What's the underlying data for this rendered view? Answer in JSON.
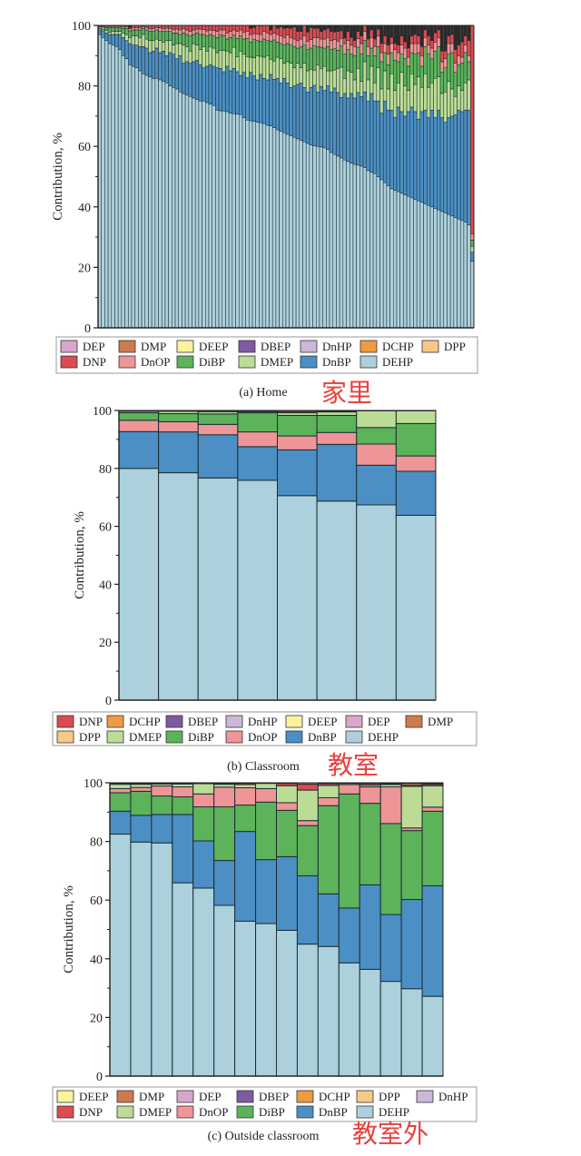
{
  "colors": {
    "DEP": "#d8a6cc",
    "DMP": "#cf7a4e",
    "DEEP": "#fbf29a",
    "DBEP": "#7f5aa3",
    "DnHP": "#cdb7d8",
    "DCHP": "#f09a42",
    "DPP": "#f7c987",
    "DNP": "#dc4b4f",
    "DnOP": "#ee9597",
    "DiBP": "#5cb35a",
    "DMEP": "#bcdc96",
    "DnBP": "#4b8fc4",
    "DEHP": "#acd0dc",
    "annotation": "#e8413e"
  },
  "chart_data": [
    {
      "type": "bar",
      "stacked": true,
      "title": "(a) Home",
      "annotation": "家里",
      "xlabel": "",
      "ylabel": "Contribution, %",
      "ylim": [
        0,
        100
      ],
      "yticks": [
        "0",
        "20",
        "40",
        "60",
        "80",
        "100"
      ],
      "legend": {
        "placement": "bottom",
        "entries": [
          "DEP",
          "DMP",
          "DEEP",
          "DBEP",
          "DnHP",
          "DCHP",
          "DPP",
          "DNP",
          "DnOP",
          "DiBP",
          "DMEP",
          "DnBP",
          "DEHP"
        ]
      },
      "stack_order": [
        "DEHP",
        "DnBP",
        "DMEP",
        "DiBP",
        "DnOP",
        "DNP"
      ],
      "n_bars": 112,
      "series": [
        {
          "name": "DEHP",
          "values": [
            97,
            96,
            95,
            94,
            93.5,
            93,
            92,
            90,
            89,
            87,
            86.5,
            86,
            85,
            84,
            83.5,
            83,
            82.5,
            82.5,
            82,
            81.5,
            81,
            80,
            79.5,
            79,
            78,
            77.5,
            77,
            76.5,
            76,
            75.5,
            75,
            75,
            74.5,
            74,
            73.5,
            72,
            71.8,
            71.7,
            71.5,
            71,
            70.8,
            70.7,
            70.5,
            69.5,
            68.7,
            68.5,
            68.3,
            68,
            67.8,
            67.5,
            67,
            66.8,
            66.2,
            65.5,
            65,
            64.5,
            64,
            63.5,
            63,
            62.5,
            62,
            61.5,
            61,
            60.5,
            60.2,
            60,
            59.8,
            59.5,
            59,
            58,
            57.3,
            56.8,
            56.2,
            55.5,
            55,
            54.5,
            54,
            53.8,
            53.5,
            53,
            52,
            51.5,
            51,
            50,
            49,
            48,
            47,
            46,
            45.5,
            45,
            44.5,
            44,
            43.5,
            43,
            42.5,
            42,
            41.5,
            41,
            40.5,
            40,
            39.5,
            39,
            38.5,
            38,
            37.5,
            37,
            36.5,
            36,
            35.5,
            35,
            34,
            22
          ]
        },
        {
          "name": "DnBP",
          "values": [
            1.5,
            2,
            2.5,
            3,
            3.5,
            4,
            5,
            6,
            6,
            7,
            7,
            7.5,
            8,
            9,
            9,
            8,
            9,
            10,
            9,
            10,
            9,
            11,
            11,
            10,
            12,
            10,
            11,
            11,
            12,
            13,
            12,
            11,
            12,
            13,
            13,
            14,
            14,
            13,
            15,
            14,
            15,
            14,
            13,
            15,
            14,
            16,
            15,
            14,
            16,
            15,
            15,
            17,
            16,
            17,
            16,
            18,
            17,
            16,
            17,
            18,
            19,
            18,
            17,
            19,
            20,
            18,
            20,
            19,
            21,
            20,
            22,
            21,
            20,
            22,
            21,
            23,
            22,
            24,
            23,
            25,
            23,
            26,
            24,
            25,
            22,
            27,
            25,
            26,
            24,
            28,
            27,
            26,
            28,
            30,
            29,
            27,
            30,
            31,
            29,
            32,
            30,
            33,
            31,
            30,
            32,
            33,
            34,
            36,
            36,
            37,
            38,
            3
          ]
        },
        {
          "name": "DMEP",
          "values": [
            0.5,
            0.5,
            0.8,
            0.8,
            1,
            1,
            1,
            1.5,
            2,
            2,
            3,
            3,
            3,
            4,
            3,
            4,
            3.5,
            3,
            4,
            3,
            5,
            4,
            3,
            5,
            4,
            6,
            5,
            4,
            6,
            5,
            5,
            7,
            5,
            6,
            6,
            5,
            6,
            7,
            5,
            6,
            7,
            5,
            8,
            6,
            7,
            5,
            6,
            8,
            6,
            7,
            8,
            5,
            6,
            7,
            8,
            5,
            7,
            8,
            6,
            7,
            5,
            8,
            7,
            6,
            5,
            9,
            6,
            8,
            5,
            7,
            6,
            8,
            10,
            5,
            9,
            7,
            6,
            8,
            5,
            10,
            7,
            9,
            6,
            11,
            8,
            10,
            7,
            12,
            9,
            8,
            13,
            10,
            7,
            11,
            9,
            14,
            8,
            12,
            10,
            9,
            13,
            11,
            8,
            10,
            12,
            9,
            6,
            8,
            7,
            9,
            10,
            2
          ]
        },
        {
          "name": "DiBP",
          "values": [
            0.5,
            1,
            1,
            1.5,
            1.3,
            1.2,
            1.2,
            1.5,
            2,
            2.2,
            2,
            2,
            2.5,
            2,
            3,
            3,
            3,
            3,
            3,
            3.5,
            3,
            3,
            4,
            3.5,
            3,
            4,
            4,
            5,
            3,
            4,
            5,
            4,
            5,
            4,
            4,
            5,
            5,
            5,
            4,
            5,
            4,
            6,
            5,
            5,
            6,
            5,
            6,
            5,
            5,
            6,
            5,
            6,
            7,
            5,
            5,
            6,
            6,
            6,
            7,
            5,
            7,
            6,
            7,
            7,
            8,
            6,
            7,
            6,
            8,
            7,
            7,
            6,
            7,
            8,
            7,
            6,
            8,
            7,
            9,
            7,
            8,
            6,
            9,
            7,
            9,
            6,
            8,
            7,
            10,
            7,
            6,
            9,
            8,
            7,
            10,
            8,
            7,
            9,
            11,
            8,
            9,
            10,
            7,
            8,
            9,
            12,
            8,
            7,
            9,
            10,
            6,
            2
          ]
        },
        {
          "name": "DnOP",
          "values": [
            0.3,
            0.3,
            0.4,
            0.4,
            0.4,
            0.5,
            0.5,
            0.6,
            0.6,
            0.7,
            0.8,
            0.8,
            0.8,
            0.6,
            0.8,
            1,
            1,
            0.8,
            1.2,
            1,
            1.1,
            1,
            1.2,
            1.3,
            1.5,
            1.4,
            1.5,
            1.5,
            1.5,
            1.3,
            1.8,
            1.6,
            1.7,
            1.5,
            1.8,
            2,
            1.7,
            1.8,
            2,
            2,
            1.7,
            2.3,
            2,
            2.3,
            2.3,
            2.5,
            2,
            2.2,
            2.2,
            2.5,
            2.5,
            2.2,
            2.2,
            2.5,
            2.5,
            2.5,
            2.8,
            2.5,
            2.5,
            2.5,
            2.5,
            3,
            2.8,
            2.8,
            2.8,
            3,
            2.7,
            3,
            3,
            3,
            3,
            3,
            2.5,
            3.5,
            3,
            3,
            3,
            2.8,
            3.5,
            3,
            3,
            3.5,
            3,
            3.5,
            3,
            3,
            3.5,
            3,
            3.5,
            3,
            3,
            3.5,
            3,
            3,
            3.5,
            3,
            3.5,
            3,
            3,
            3.5,
            3,
            3,
            3.5,
            3,
            3.5,
            3,
            3,
            3,
            2,
            2.5,
            2,
            2
          ]
        },
        {
          "name": "DNP",
          "values": [
            0.2,
            0.2,
            0.3,
            0.3,
            0.3,
            0.3,
            0.3,
            0.4,
            0.4,
            0.4,
            0.7,
            0.7,
            0.7,
            0.4,
            0.7,
            1,
            1,
            0.7,
            0.8,
            1,
            0.9,
            1,
            1.3,
            1.2,
            1.5,
            1.1,
            1.5,
            2,
            1.5,
            1.2,
            1.2,
            1.4,
            1.8,
            1.5,
            1.7,
            2,
            1.5,
            1.5,
            2.5,
            2,
            1.5,
            2,
            2.2,
            2.2,
            2,
            2,
            2,
            2.8,
            2.8,
            2,
            2.5,
            1.5,
            2.6,
            2,
            3,
            3,
            2.4,
            3,
            4,
            3,
            2.5,
            3.5,
            3,
            4,
            3,
            3,
            2.5,
            3,
            3,
            3,
            2.5,
            3.2,
            2.5,
            1.8,
            3,
            2.5,
            2,
            2.4,
            2.5,
            2.5,
            2.5,
            2.5,
            2.5,
            2.2,
            3,
            2.5,
            3,
            2,
            2,
            2.5,
            3,
            2,
            3,
            2.5,
            3,
            2.5,
            3,
            2.5,
            3,
            2.5,
            3,
            2.5,
            3.5,
            2.5,
            2.5,
            3,
            4.5,
            3.5,
            5,
            3,
            5,
            69
          ]
        }
      ]
    },
    {
      "type": "bar",
      "stacked": true,
      "title": "(b) Classroom",
      "annotation": "教室",
      "xlabel": "",
      "ylabel": "Contribution, %",
      "ylim": [
        0,
        100
      ],
      "yticks": [
        "0",
        "20",
        "40",
        "60",
        "80",
        "100"
      ],
      "legend": {
        "placement": "bottom",
        "entries": [
          "DNP",
          "DCHP",
          "DBEP",
          "DnHP",
          "DEEP",
          "DEP",
          "DMP",
          "DPP",
          "DMEP",
          "DiBP",
          "DnOP",
          "DnBP",
          "DEHP"
        ]
      },
      "stack_order": [
        "DEHP",
        "DnBP",
        "DnOP",
        "DiBP",
        "DMEP",
        "DPP",
        "DNP"
      ],
      "n_bars": 8,
      "series": [
        {
          "name": "DEHP",
          "values": [
            80.0,
            78.5,
            76.7,
            75.9,
            70.6,
            68.7,
            67.4,
            63.8
          ]
        },
        {
          "name": "DnBP",
          "values": [
            12.7,
            14.1,
            14.9,
            11.6,
            15.8,
            19.6,
            13.7,
            15.2
          ]
        },
        {
          "name": "DnOP",
          "values": [
            3.9,
            3.5,
            3.6,
            5.1,
            4.8,
            4.1,
            7.3,
            5.3
          ]
        },
        {
          "name": "DiBP",
          "values": [
            2.6,
            2.8,
            3.6,
            6.6,
            7.1,
            5.9,
            5.7,
            11.2
          ]
        },
        {
          "name": "DMEP",
          "values": [
            0.5,
            0.8,
            0.8,
            0.4,
            0.9,
            1.2,
            5.8,
            4.4
          ]
        },
        {
          "name": "DPP",
          "values": [
            0.1,
            0.1,
            0.2,
            0.1,
            0.4,
            0.2,
            0.05,
            0.05
          ]
        },
        {
          "name": "DNP",
          "values": [
            0.2,
            0.2,
            0.2,
            0.3,
            0.4,
            0.3,
            0.05,
            0.05
          ]
        }
      ]
    },
    {
      "type": "bar",
      "stacked": true,
      "title": "(c) Outside classroom",
      "annotation": "教室外",
      "xlabel": "",
      "ylabel": "Contribution, %",
      "ylim": [
        0,
        100
      ],
      "yticks": [
        "0",
        "20",
        "40",
        "60",
        "80",
        "100"
      ],
      "legend": {
        "placement": "bottom",
        "entries": [
          "DEEP",
          "DMP",
          "DEP",
          "DBEP",
          "DCHP",
          "DPP",
          "DnHP",
          "DNP",
          "DMEP",
          "DnOP",
          "DiBP",
          "DnBP",
          "DEHP"
        ]
      },
      "stack_order": [
        "DEHP",
        "DnBP",
        "DiBP",
        "DnOP",
        "DMEP",
        "DNP",
        "DMP",
        "DBEP"
      ],
      "n_bars": 16,
      "series": [
        {
          "name": "DEHP",
          "values": [
            82.5,
            79.8,
            79.5,
            65.9,
            64.1,
            58.2,
            52.8,
            52.0,
            49.7,
            45.0,
            44.2,
            38.6,
            36.4,
            32.3,
            29.8,
            27.2
          ]
        },
        {
          "name": "DnBP",
          "values": [
            7.8,
            9.1,
            9.7,
            23.3,
            16.1,
            15.3,
            30.6,
            21.8,
            25.1,
            23.3,
            17.9,
            18.7,
            28.8,
            22.8,
            30.4,
            37.7
          ]
        },
        {
          "name": "DiBP",
          "values": [
            6.3,
            8.2,
            6.3,
            6.0,
            11.6,
            18.3,
            9.0,
            19.6,
            15.8,
            17.1,
            30.1,
            38.9,
            27.8,
            31.0,
            23.5,
            25.4
          ]
        },
        {
          "name": "DnOP",
          "values": [
            1.4,
            1.3,
            3.4,
            3.4,
            4.4,
            6.7,
            5.9,
            4.6,
            2.6,
            1.7,
            2.7,
            3.2,
            5.6,
            12.5,
            0.9,
            1.4
          ]
        },
        {
          "name": "DMEP",
          "values": [
            1.5,
            1.1,
            0.7,
            1.0,
            3.5,
            1.0,
            1.1,
            1.8,
            5.8,
            10.4,
            4.2,
            0.4,
            0.6,
            0.8,
            14.2,
            7.3
          ]
        },
        {
          "name": "DNP",
          "values": [
            0.3,
            0.3,
            0.3,
            0.3,
            0.2,
            0.3,
            0.4,
            0.1,
            0.8,
            2.0,
            0.6,
            0.2,
            0.5,
            0.3,
            0.3,
            0.5
          ]
        },
        {
          "name": "DMP",
          "values": [
            0.2,
            0.2,
            0.1,
            0.1,
            0.1,
            0.2,
            0.2,
            0.1,
            0.2,
            0.5,
            0.3,
            0.0,
            0.3,
            0.3,
            0.7,
            0.3
          ]
        },
        {
          "name": "DBEP",
          "values": [
            0.0,
            0.0,
            0.0,
            0.0,
            0.0,
            0.0,
            0.0,
            0.0,
            0.0,
            0.0,
            0.0,
            0.0,
            0.0,
            0.0,
            0.2,
            0.2
          ]
        }
      ]
    }
  ]
}
